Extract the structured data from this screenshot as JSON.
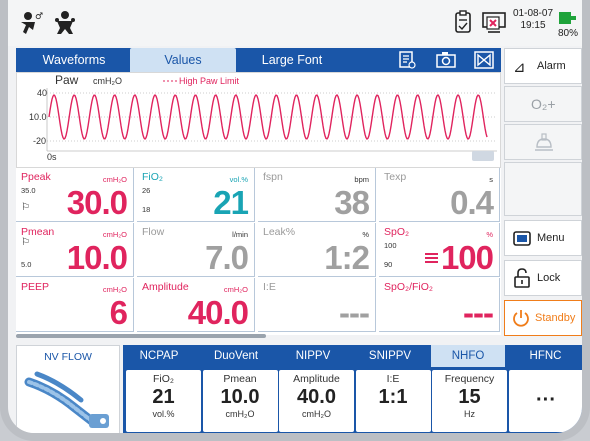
{
  "status": {
    "date": "01-08-07",
    "time": "19:15",
    "battery": "80%"
  },
  "tabs": [
    {
      "label": "Waveforms",
      "active": false
    },
    {
      "label": "Values",
      "active": true
    },
    {
      "label": "Large Font",
      "active": false
    }
  ],
  "waveform": {
    "title": "Paw",
    "unit": "cmH₂O",
    "limit_label": "High Paw Limit",
    "y_ticks": [
      "40",
      "10.0",
      "-20"
    ],
    "x_tick": "0s",
    "color": "#e0245e"
  },
  "values": [
    {
      "name": "Ppeak",
      "unit": "cmH₂O",
      "hi": "35.0",
      "lo": "",
      "value": "30.0",
      "color": "red"
    },
    {
      "name": "FiO₂",
      "unit": "vol.%",
      "hi": "26",
      "lo": "18",
      "value": "21",
      "color": "teal"
    },
    {
      "name": "fspn",
      "unit": "bpm",
      "hi": "",
      "lo": "",
      "value": "38",
      "color": "grey"
    },
    {
      "name": "Texp",
      "unit": "s",
      "hi": "",
      "lo": "",
      "value": "0.4",
      "color": "grey"
    },
    {
      "name": "Pmean",
      "unit": "cmH₂O",
      "hi": "",
      "lo": "5.0",
      "value": "10.0",
      "color": "red"
    },
    {
      "name": "Flow",
      "unit": "l/min",
      "hi": "",
      "lo": "",
      "value": "7.0",
      "color": "grey"
    },
    {
      "name": "Leak%",
      "unit": "%",
      "hi": "",
      "lo": "",
      "value": "1:2",
      "color": "grey"
    },
    {
      "name": "SpO₂",
      "unit": "%",
      "hi": "100",
      "lo": "90",
      "value": "100",
      "color": "red"
    },
    {
      "name": "PEEP",
      "unit": "cmH₂O",
      "hi": "",
      "lo": "",
      "value": "6",
      "color": "red"
    },
    {
      "name": "Amplitude",
      "unit": "cmH₂O",
      "hi": "",
      "lo": "",
      "value": "40.0",
      "color": "red"
    },
    {
      "name": "I:E",
      "unit": "",
      "hi": "",
      "lo": "",
      "value": "---",
      "color": "grey"
    },
    {
      "name": "SpO₂/FiO₂",
      "unit": "",
      "hi": "",
      "lo": "",
      "value": "---",
      "color": "red"
    }
  ],
  "sidebar": {
    "alarm": "Alarm",
    "o2": "O₂+",
    "menu": "Menu",
    "lock": "Lock",
    "standby": "Standby"
  },
  "patient": {
    "label": "NV FLOW"
  },
  "modes": [
    {
      "label": "NCPAP",
      "active": false
    },
    {
      "label": "DuoVent",
      "active": false
    },
    {
      "label": "NIPPV",
      "active": false
    },
    {
      "label": "SNIPPV",
      "active": false
    },
    {
      "label": "NHFO",
      "active": true
    },
    {
      "label": "HFNC",
      "active": false
    }
  ],
  "settings": [
    {
      "name": "FiO₂",
      "value": "21",
      "unit": "vol.%"
    },
    {
      "name": "Pmean",
      "value": "10.0",
      "unit": "cmH₂O"
    },
    {
      "name": "Amplitude",
      "value": "40.0",
      "unit": "cmH₂O"
    },
    {
      "name": "I:E",
      "value": "1:1",
      "unit": ""
    },
    {
      "name": "Frequency",
      "value": "15",
      "unit": "Hz"
    },
    {
      "name": "more",
      "value": "···",
      "unit": ""
    }
  ]
}
